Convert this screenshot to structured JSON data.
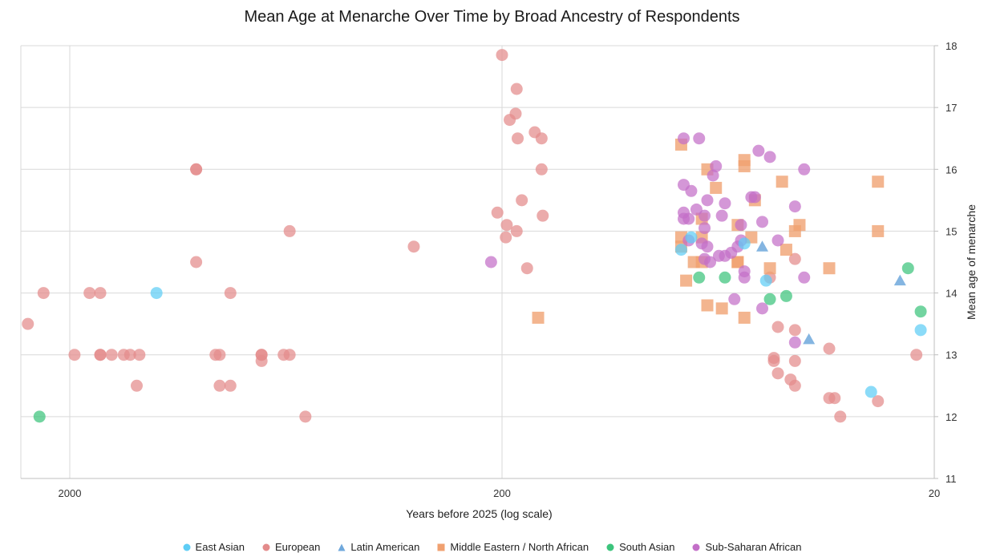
{
  "chart_data": {
    "type": "scatter",
    "title": "Mean Age at Menarche Over Time by Broad Ancestry of Respondents",
    "xlabel": "Years before 2025 (log scale)",
    "ylabel": "Mean age of menarche",
    "x_scale": "log",
    "x_reversed": true,
    "xlim": [
      2900,
      20
    ],
    "ylim": [
      11,
      18
    ],
    "x_ticks": [
      2000,
      200,
      20
    ],
    "x_tick_labels": [
      "2000",
      "200",
      "20"
    ],
    "y_ticks": [
      11,
      12,
      13,
      14,
      15,
      16,
      17,
      18
    ],
    "y_tick_labels": [
      "11",
      "12",
      "13",
      "14",
      "15",
      "16",
      "17",
      "18"
    ],
    "legend_position": "bottom",
    "series": [
      {
        "name": "East Asian",
        "marker": "circle",
        "color": "#5ECDF5",
        "points": [
          [
            1260,
            14.0
          ],
          [
            73,
            14.9
          ],
          [
            77,
            14.7
          ],
          [
            55,
            14.8
          ],
          [
            49,
            14.2
          ],
          [
            28,
            12.4
          ],
          [
            21.5,
            13.4
          ]
        ]
      },
      {
        "name": "European",
        "marker": "circle",
        "color": "#E38B8B",
        "points": [
          [
            2500,
            13.5
          ],
          [
            2300,
            14.0
          ],
          [
            1950,
            13.0
          ],
          [
            1800,
            14.0
          ],
          [
            1700,
            14.0
          ],
          [
            1700,
            13.0
          ],
          [
            1700,
            13.0
          ],
          [
            1600,
            13.0
          ],
          [
            1500,
            13.0
          ],
          [
            1450,
            13.0
          ],
          [
            1400,
            12.5
          ],
          [
            1380,
            13.0
          ],
          [
            1020,
            16.0
          ],
          [
            1020,
            16.0
          ],
          [
            1020,
            14.5
          ],
          [
            920,
            13.0
          ],
          [
            900,
            13.0
          ],
          [
            900,
            12.5
          ],
          [
            850,
            14.0
          ],
          [
            850,
            12.5
          ],
          [
            720,
            13.0
          ],
          [
            720,
            13.0
          ],
          [
            720,
            12.9
          ],
          [
            640,
            13.0
          ],
          [
            620,
            15.0
          ],
          [
            620,
            13.0
          ],
          [
            570,
            12.0
          ],
          [
            320,
            14.75
          ],
          [
            200,
            17.85
          ],
          [
            185,
            17.3
          ],
          [
            186,
            16.9
          ],
          [
            192,
            16.8
          ],
          [
            184,
            16.5
          ],
          [
            168,
            16.6
          ],
          [
            162,
            16.5
          ],
          [
            162,
            16.0
          ],
          [
            180,
            15.5
          ],
          [
            161,
            15.25
          ],
          [
            205,
            15.3
          ],
          [
            195,
            15.1
          ],
          [
            196,
            14.9
          ],
          [
            185,
            15.0
          ],
          [
            175,
            14.4
          ],
          [
            48,
            14.25
          ],
          [
            46,
            13.45
          ],
          [
            47,
            12.9
          ],
          [
            47,
            12.95
          ],
          [
            46,
            12.7
          ],
          [
            43,
            12.6
          ],
          [
            42,
            13.4
          ],
          [
            42,
            12.9
          ],
          [
            42,
            12.5
          ],
          [
            42,
            14.55
          ],
          [
            35,
            13.1
          ],
          [
            35,
            12.3
          ],
          [
            34,
            12.3
          ],
          [
            33,
            12.0
          ],
          [
            27,
            12.25
          ],
          [
            22,
            13.0
          ]
        ]
      },
      {
        "name": "Latin American",
        "marker": "triangle",
        "color": "#6FA8DC",
        "points": [
          [
            50,
            14.75
          ],
          [
            39,
            13.25
          ],
          [
            24,
            14.2
          ]
        ]
      },
      {
        "name": "Middle Eastern / North African",
        "marker": "square",
        "color": "#F0A070",
        "points": [
          [
            165,
            13.6
          ],
          [
            77,
            16.4
          ],
          [
            77,
            14.9
          ],
          [
            77,
            14.75
          ],
          [
            75,
            14.2
          ],
          [
            72,
            14.5
          ],
          [
            69,
            15.2
          ],
          [
            69,
            14.9
          ],
          [
            69,
            14.5
          ],
          [
            67,
            16.0
          ],
          [
            67,
            13.8
          ],
          [
            64,
            15.7
          ],
          [
            62,
            13.75
          ],
          [
            57,
            15.1
          ],
          [
            57,
            14.5
          ],
          [
            57,
            14.5
          ],
          [
            55,
            16.15
          ],
          [
            55,
            16.05
          ],
          [
            55,
            13.6
          ],
          [
            53,
            14.9
          ],
          [
            52,
            15.5
          ],
          [
            48,
            14.4
          ],
          [
            45,
            15.8
          ],
          [
            44,
            14.7
          ],
          [
            42,
            15.0
          ],
          [
            41,
            15.1
          ],
          [
            35,
            14.4
          ],
          [
            27,
            15.8
          ],
          [
            27,
            15.0
          ]
        ]
      },
      {
        "name": "South Asian",
        "marker": "circle",
        "color": "#3CC47C",
        "points": [
          [
            2350,
            12.0
          ],
          [
            70,
            14.25
          ],
          [
            61,
            14.25
          ],
          [
            48,
            13.9
          ],
          [
            44,
            13.95
          ],
          [
            23,
            14.4
          ],
          [
            21.5,
            13.7
          ]
        ]
      },
      {
        "name": "Sub-Saharan African",
        "marker": "circle",
        "color": "#C36FC8",
        "points": [
          [
            212,
            14.5
          ],
          [
            76,
            16.5
          ],
          [
            76,
            15.75
          ],
          [
            76,
            15.3
          ],
          [
            76,
            15.2
          ],
          [
            74,
            15.2
          ],
          [
            74,
            14.85
          ],
          [
            73,
            15.65
          ],
          [
            71,
            15.35
          ],
          [
            70,
            16.5
          ],
          [
            69,
            14.8
          ],
          [
            68,
            14.55
          ],
          [
            68,
            15.25
          ],
          [
            68,
            15.05
          ],
          [
            67,
            15.5
          ],
          [
            67,
            14.75
          ],
          [
            66,
            14.5
          ],
          [
            65,
            15.9
          ],
          [
            64,
            16.05
          ],
          [
            63,
            14.6
          ],
          [
            62,
            15.25
          ],
          [
            61,
            15.45
          ],
          [
            61,
            14.6
          ],
          [
            59,
            14.65
          ],
          [
            58,
            13.9
          ],
          [
            57,
            14.75
          ],
          [
            56,
            15.1
          ],
          [
            56,
            14.85
          ],
          [
            55,
            14.35
          ],
          [
            55,
            14.25
          ],
          [
            53,
            15.55
          ],
          [
            52,
            15.55
          ],
          [
            51,
            16.3
          ],
          [
            50,
            15.15
          ],
          [
            50,
            13.75
          ],
          [
            48,
            16.2
          ],
          [
            46,
            14.85
          ],
          [
            42,
            15.4
          ],
          [
            42,
            13.2
          ],
          [
            40,
            16.0
          ],
          [
            40,
            14.25
          ]
        ]
      }
    ]
  }
}
